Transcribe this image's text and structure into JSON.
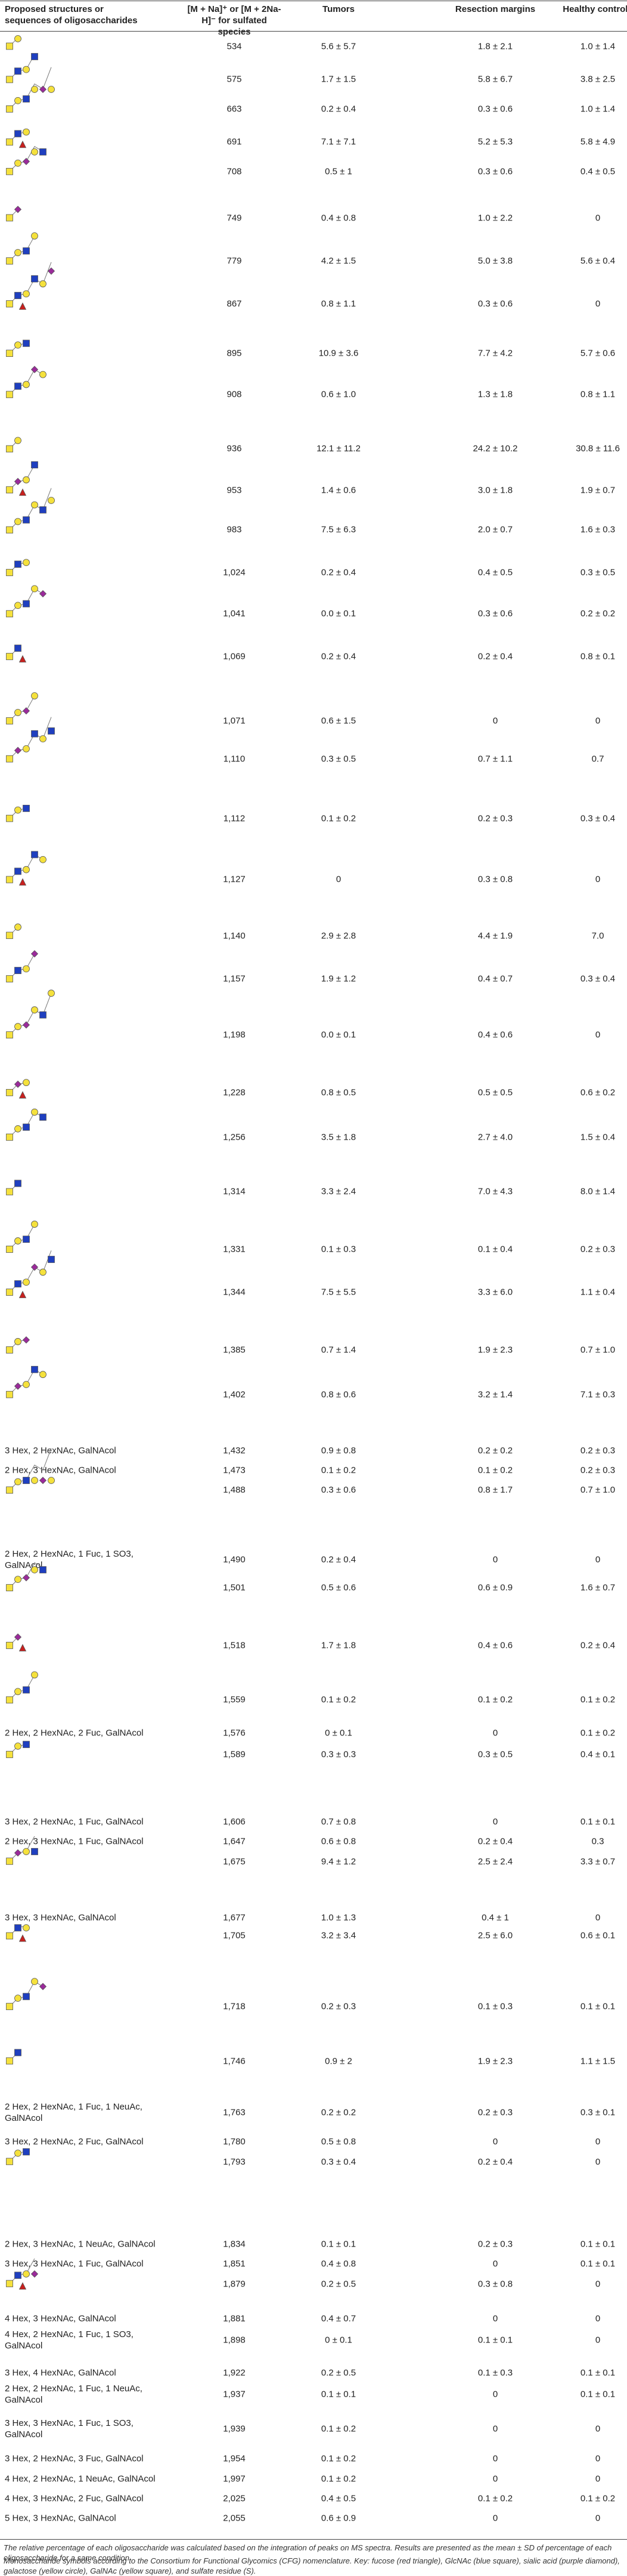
{
  "table": {
    "headers": [
      "Proposed structures or sequences of oligosaccharides",
      "[M + Na]⁺ or [M + 2Na-H]⁻ for sulfated species",
      "Tumors",
      "Resection margins",
      "Healthy controls"
    ],
    "rows": [
      {
        "mass": "534",
        "tumors": "5.6 ± 5.7",
        "margins": "1.8 ± 2.1",
        "controls": "1.0 ± 1.4"
      },
      {
        "mass": "575",
        "tumors": "1.7 ± 1.5",
        "margins": "5.8 ± 6.7",
        "controls": "3.8 ± 2.5"
      },
      {
        "mass": "663",
        "tumors": "0.2 ± 0.4",
        "margins": "0.3 ± 0.6",
        "controls": "1.0 ± 1.4"
      },
      {
        "mass": "691",
        "tumors": "7.1 ± 7.1",
        "margins": "5.2 ± 5.3",
        "controls": "5.8 ± 4.9"
      },
      {
        "mass": "708",
        "tumors": "0.5 ± 1",
        "margins": "0.3 ± 0.6",
        "controls": "0.4 ± 0.5"
      },
      {
        "mass": "749",
        "tumors": "0.4 ± 0.8",
        "margins": "1.0 ± 2.2",
        "controls": "0"
      },
      {
        "mass": "779",
        "tumors": "4.2 ± 1.5",
        "margins": "5.0 ± 3.8",
        "controls": "5.6 ± 0.4"
      },
      {
        "mass": "867",
        "tumors": "0.8 ± 1.1",
        "margins": "0.3 ± 0.6",
        "controls": "0"
      },
      {
        "mass": "895",
        "tumors": "10.9 ± 3.6",
        "margins": "7.7 ± 4.2",
        "controls": "5.7 ± 0.6"
      },
      {
        "mass": "908",
        "tumors": "0.6 ± 1.0",
        "margins": "1.3 ± 1.8",
        "controls": "0.8 ± 1.1"
      },
      {
        "mass": "936",
        "tumors": "12.1 ± 11.2",
        "margins": "24.2 ± 10.2",
        "controls": "30.8 ± 11.6"
      },
      {
        "mass": "953",
        "tumors": "1.4 ± 0.6",
        "margins": "3.0 ± 1.8",
        "controls": "1.9 ± 0.7"
      },
      {
        "mass": "983",
        "tumors": "7.5 ± 6.3",
        "margins": "2.0 ± 0.7",
        "controls": "1.6 ± 0.3"
      },
      {
        "mass": "1,024",
        "tumors": "0.2 ± 0.4",
        "margins": "0.4 ± 0.5",
        "controls": "0.3 ± 0.5"
      },
      {
        "mass": "1,041",
        "tumors": "0.0 ± 0.1",
        "margins": "0.3 ± 0.6",
        "controls": "0.2 ± 0.2"
      },
      {
        "mass": "1,069",
        "tumors": "0.2 ± 0.4",
        "margins": "0.2 ± 0.4",
        "controls": "0.8 ± 0.1"
      },
      {
        "mass": "1,071",
        "tumors": "0.6 ± 1.5",
        "margins": "0",
        "controls": "0"
      },
      {
        "mass": "1,110",
        "tumors": "0.3 ± 0.5",
        "margins": "0.7 ± 1.1",
        "controls": "0.7"
      },
      {
        "mass": "1,112",
        "tumors": "0.1 ± 0.2",
        "margins": "0.2 ± 0.3",
        "controls": "0.3 ± 0.4"
      },
      {
        "mass": "1,127",
        "tumors": "0",
        "margins": "0.3 ± 0.8",
        "controls": "0"
      },
      {
        "mass": "1,140",
        "tumors": "2.9 ± 2.8",
        "margins": "4.4 ± 1.9",
        "controls": "7.0"
      },
      {
        "mass": "1,157",
        "tumors": "1.9 ± 1.2",
        "margins": "0.4 ± 0.7",
        "controls": "0.3 ± 0.4"
      },
      {
        "mass": "1,198",
        "tumors": "0.0 ± 0.1",
        "margins": "0.4 ± 0.6",
        "controls": "0"
      },
      {
        "mass": "1,228",
        "tumors": "0.8 ± 0.5",
        "margins": "0.5 ± 0.5",
        "controls": "0.6 ± 0.2"
      },
      {
        "mass": "1,256",
        "tumors": "3.5 ± 1.8",
        "margins": "2.7 ± 4.0",
        "controls": "1.5 ± 0.4"
      },
      {
        "mass": "1,314",
        "tumors": "3.3 ± 2.4",
        "margins": "7.0 ± 4.3",
        "controls": "8.0 ± 1.4"
      },
      {
        "mass": "1,331",
        "tumors": "0.1 ± 0.3",
        "margins": "0.1 ± 0.4",
        "controls": "0.2 ± 0.3"
      },
      {
        "mass": "1,344",
        "tumors": "7.5 ± 5.5",
        "margins": "3.3 ± 6.0",
        "controls": "1.1 ± 0.4"
      },
      {
        "mass": "1,385",
        "tumors": "0.7 ± 1.4",
        "margins": "1.9 ± 2.3",
        "controls": "0.7 ± 1.0"
      },
      {
        "mass": "1,402",
        "tumors": "0.8 ± 0.6",
        "margins": "3.2 ± 1.4",
        "controls": "7.1 ± 0.3"
      },
      {
        "structure": "3 Hex, 2 HexNAc, GalNAcol",
        "mass": "1,432",
        "tumors": "0.9 ± 0.8",
        "margins": "0.2 ± 0.2",
        "controls": "0.2 ± 0.3"
      },
      {
        "structure": "2 Hex, 3 HexNAc, GalNAcol",
        "mass": "1,473",
        "tumors": "0.1 ± 0.2",
        "margins": "0.1 ± 0.2",
        "controls": "0.2 ± 0.3"
      },
      {
        "mass": "1,488",
        "tumors": "0.3 ± 0.6",
        "margins": "0.8 ± 1.7",
        "controls": "0.7 ± 1.0"
      },
      {
        "structure": "2 Hex, 2 HexNAc, 1 Fuc, 1 SO3, GalNAcol",
        "mass": "1,490",
        "tumors": "0.2 ± 0.4",
        "margins": "0",
        "controls": "0"
      },
      {
        "mass": "1,501",
        "tumors": "0.5 ± 0.6",
        "margins": "0.6 ± 0.9",
        "controls": "1.6 ± 0.7"
      },
      {
        "mass": "1,518",
        "tumors": "1.7 ± 1.8",
        "margins": "0.4 ± 0.6",
        "controls": "0.2 ± 0.4"
      },
      {
        "mass": "1,559",
        "tumors": "0.1 ± 0.2",
        "margins": "0.1 ± 0.2",
        "controls": "0.1 ± 0.2"
      },
      {
        "structure": "2 Hex, 2 HexNAc, 2 Fuc, GalNAcol",
        "mass": "1,576",
        "tumors": "0 ± 0.1",
        "margins": "0",
        "controls": "0.1 ± 0.2"
      },
      {
        "mass": "1,589",
        "tumors": "0.3 ± 0.3",
        "margins": "0.3 ± 0.5",
        "controls": "0.4 ± 0.1"
      },
      {
        "structure": "3 Hex, 2 HexNAc, 1 Fuc, GalNAcol",
        "mass": "1,606",
        "tumors": "0.7 ± 0.8",
        "margins": "0",
        "controls": "0.1 ± 0.1"
      },
      {
        "structure": "2 Hex, 3 HexNAc, 1 Fuc, GalNAcol",
        "mass": "1,647",
        "tumors": "0.6 ± 0.8",
        "margins": "0.2 ± 0.4",
        "controls": "0.3"
      },
      {
        "mass": "1,675",
        "tumors": "9.4 ± 1.2",
        "margins": "2.5 ± 2.4",
        "controls": "3.3 ± 0.7"
      },
      {
        "structure": "3 Hex, 3 HexNAc, GalNAcol",
        "mass": "1,677",
        "tumors": "1.0 ± 1.3",
        "margins": "0.4 ± 1",
        "controls": "0"
      },
      {
        "mass": "1,705",
        "tumors": "3.2 ± 3.4",
        "margins": "2.5 ± 6.0",
        "controls": "0.6 ± 0.1"
      },
      {
        "mass": "1,718",
        "tumors": "0.2 ± 0.3",
        "margins": "0.1 ± 0.3",
        "controls": "0.1 ± 0.1"
      },
      {
        "mass": "1,746",
        "tumors": "0.9 ± 2",
        "margins": "1.9 ± 2.3",
        "controls": "1.1 ± 1.5"
      },
      {
        "structure": "2 Hex, 2 HexNAc, 1 Fuc, 1 NeuAc, GalNAcol",
        "mass": "1,763",
        "tumors": "0.2 ± 0.2",
        "margins": "0.2 ± 0.3",
        "controls": "0.3 ± 0.1"
      },
      {
        "structure": "3 Hex, 2 HexNAc, 2 Fuc, GalNAcol",
        "mass": "1,780",
        "tumors": "0.5 ± 0.8",
        "margins": "0",
        "controls": "0"
      },
      {
        "mass": "1,793",
        "tumors": "0.3 ± 0.4",
        "margins": "0.2 ± 0.4",
        "controls": "0"
      },
      {
        "structure": "2 Hex, 3 HexNAc, 1 NeuAc, GalNAcol",
        "mass": "1,834",
        "tumors": "0.1 ± 0.1",
        "margins": "0.2 ± 0.3",
        "controls": "0.1 ± 0.1"
      },
      {
        "structure": "3 Hex, 3 HexNAc, 1 Fuc, GalNAcol",
        "mass": "1,851",
        "tumors": "0.4 ± 0.8",
        "margins": "0",
        "controls": "0.1 ± 0.1"
      },
      {
        "mass": "1,879",
        "tumors": "0.2 ± 0.5",
        "margins": "0.3 ± 0.8",
        "controls": "0"
      },
      {
        "structure": "4 Hex, 3 HexNAc, GalNAcol",
        "mass": "1,881",
        "tumors": "0.4 ± 0.7",
        "margins": "0",
        "controls": "0"
      },
      {
        "structure": "4 Hex, 2 HexNAc, 1 Fuc, 1 SO3, GalNAcol",
        "mass": "1,898",
        "tumors": "0 ± 0.1",
        "margins": "0.1 ± 0.1",
        "controls": "0"
      },
      {
        "structure": "3 Hex, 4 HexNAc, GalNAcol",
        "mass": "1,922",
        "tumors": "0.2 ± 0.5",
        "margins": "0.1 ± 0.3",
        "controls": "0.1 ± 0.1"
      },
      {
        "structure": "2 Hex, 2 HexNAc, 1 Fuc, 1 NeuAc, GalNAcol",
        "mass": "1,937",
        "tumors": "0.1 ± 0.1",
        "margins": "0",
        "controls": "0.1 ± 0.1"
      },
      {
        "structure": "3 Hex, 3 HexNAc, 1 Fuc, 1 SO3, GalNAcol",
        "mass": "1,939",
        "tumors": "0.1 ± 0.2",
        "margins": "0",
        "controls": "0"
      },
      {
        "structure": "3 Hex, 2 HexNAc, 3 Fuc, GalNAcol",
        "mass": "1,954",
        "tumors": "0.1 ± 0.2",
        "margins": "0",
        "controls": "0"
      },
      {
        "structure": "4 Hex, 2 HexNAc, 1 NeuAc, GalNAcol",
        "mass": "1,997",
        "tumors": "0.1 ± 0.2",
        "margins": "0",
        "controls": "0"
      },
      {
        "structure": "4 Hex, 3 HexNAc, 2 Fuc, GalNAcol",
        "mass": "2,025",
        "tumors": "0.4 ± 0.5",
        "margins": "0.1 ± 0.2",
        "controls": "0.1 ± 0.2"
      },
      {
        "structure": "5 Hex, 3 HexNAc, GalNAcol",
        "mass": "2,055",
        "tumors": "0.6 ± 0.9",
        "margins": "0",
        "controls": "0"
      }
    ]
  },
  "footnotes": [
    "The relative percentage of each oligosaccharide was calculated based on the integration of peaks on MS spectra. Results are presented as the mean ± SD of percentage of each oligosaccharide for a same condition.",
    "Monosaccharide symbols according to the Consortium for Functional Glycomics (CFG) nomenclature. Key: fucose (red triangle), GlcNAc (blue square), sialic acid (purple diamond), galactose (yellow circle), GalNAc (yellow square), and sulfate residue (S)."
  ]
}
